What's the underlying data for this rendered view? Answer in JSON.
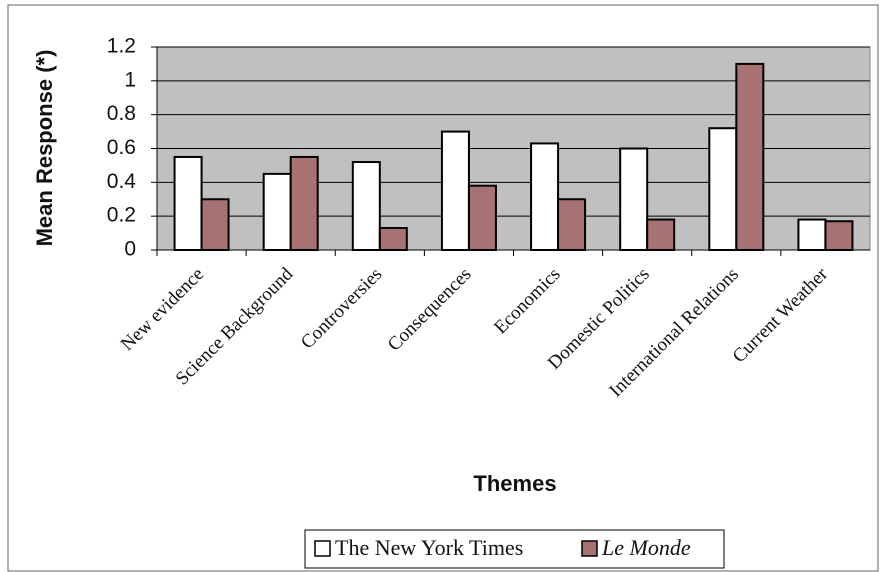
{
  "chart_data": {
    "type": "bar",
    "x_label": "Themes",
    "y_label": "Mean Response (*)",
    "categories": [
      "New evidence",
      "Science Background",
      "Controversies",
      "Consequences",
      "Economics",
      "Domestic Politics",
      "International Relations",
      "Current Weather"
    ],
    "series": [
      {
        "name": "The New York Times",
        "color": "#ffffff",
        "values": [
          0.55,
          0.45,
          0.52,
          0.7,
          0.63,
          0.6,
          0.72,
          0.18
        ]
      },
      {
        "name": "Le Monde",
        "color": "#a87272",
        "values": [
          0.3,
          0.55,
          0.13,
          0.38,
          0.3,
          0.18,
          1.1,
          0.17
        ]
      }
    ],
    "ylim": [
      0,
      1.2
    ],
    "yticks": [
      0,
      {
        "value": 0.2,
        "label": "0.2"
      },
      {
        "value": 0.4,
        "label": "0.4"
      },
      {
        "value": 0.6,
        "label": "0.6"
      },
      {
        "value": 0.8,
        "label": "0.8"
      },
      1,
      {
        "value": 1.2,
        "label": "1.2"
      }
    ],
    "grid": true,
    "plot_background": "#c0c0c0",
    "legend": "bottom"
  }
}
